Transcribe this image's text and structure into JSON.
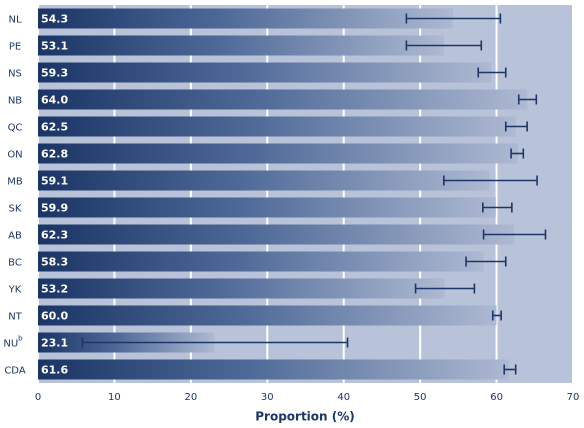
{
  "chart_data": {
    "type": "bar",
    "orientation": "horizontal",
    "categories": [
      "NL",
      "PE",
      "NS",
      "NB",
      "QC",
      "ON",
      "MB",
      "SK",
      "AB",
      "BC",
      "YK",
      "NT",
      "NU",
      "CDA"
    ],
    "footnote_marks": {
      "12": "b"
    },
    "values": [
      54.3,
      53.1,
      59.3,
      64.0,
      62.5,
      62.8,
      59.1,
      59.9,
      62.3,
      58.3,
      53.2,
      60.0,
      23.1,
      61.6
    ],
    "value_labels": [
      "54.3",
      "53.1",
      "59.3",
      "64.0",
      "62.5",
      "62.8",
      "59.1",
      "59.9",
      "62.3",
      "58.3",
      "53.2",
      "60.0",
      "23.1",
      "61.6"
    ],
    "ci_low": [
      48.2,
      48.2,
      57.6,
      62.9,
      61.2,
      61.9,
      53.1,
      58.2,
      58.3,
      56.0,
      49.4,
      59.5,
      5.8,
      61.0
    ],
    "ci_high": [
      60.5,
      58.0,
      61.2,
      65.2,
      64.0,
      63.5,
      65.3,
      62.0,
      66.4,
      61.2,
      57.1,
      60.6,
      40.5,
      62.5
    ],
    "xlabel": "Proportion (%)",
    "xlim": [
      0,
      70
    ],
    "xticks": [
      0,
      10,
      20,
      30,
      40,
      50,
      60,
      70
    ],
    "grid": true,
    "color": "#1c3767"
  }
}
